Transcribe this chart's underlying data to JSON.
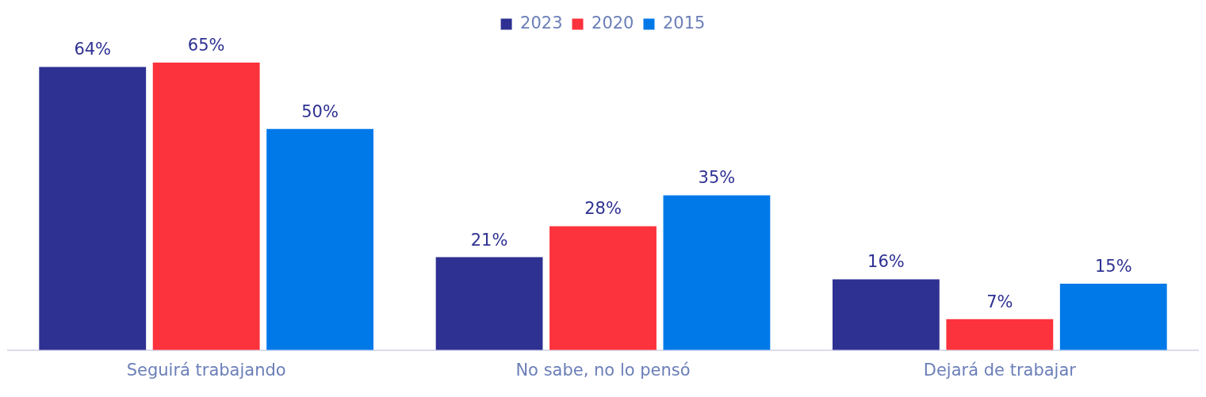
{
  "chart_data": {
    "type": "bar",
    "categories": [
      "Seguirá trabajando",
      "No sabe, no lo pensó",
      "Dejará de trabajar"
    ],
    "series": [
      {
        "name": "2023",
        "color": "#2e3192",
        "values": [
          64,
          21,
          16
        ],
        "value_labels": [
          "64%",
          "21%",
          "16%"
        ]
      },
      {
        "name": "2020",
        "color": "#fc323c",
        "values": [
          65,
          28,
          7
        ],
        "value_labels": [
          "65%",
          "28%",
          "7%"
        ]
      },
      {
        "name": "2015",
        "color": "#0079e8",
        "values": [
          50,
          35,
          15
        ],
        "value_labels": [
          "50%",
          "35%",
          "15%"
        ]
      }
    ],
    "legend": "top",
    "grid": false
  }
}
